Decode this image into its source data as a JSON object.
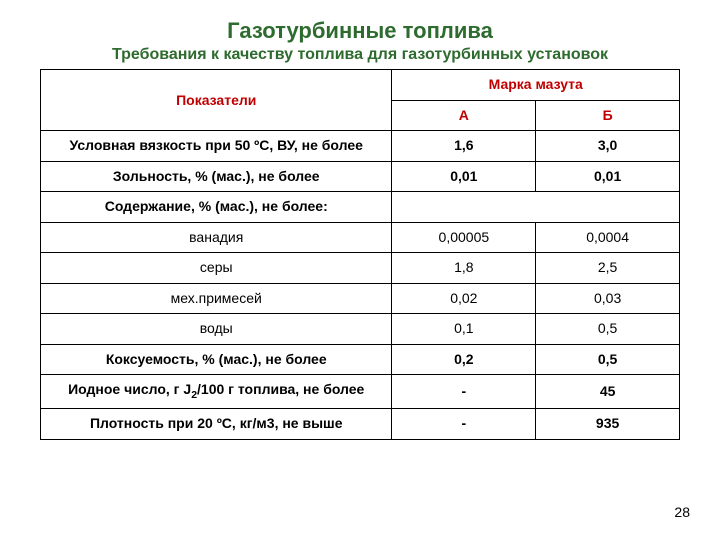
{
  "title": "Газотурбинные топлива",
  "subtitle": "Требования к качеству топлива для газотурбинных установок",
  "page_number": "28",
  "table": {
    "type": "table",
    "background_color": "#ffffff",
    "border_color": "#000000",
    "header_text_color": "#c00000",
    "body_text_color": "#000000",
    "font_size_pt": 11,
    "col_widths_pct": [
      55,
      22.5,
      22.5
    ],
    "header": {
      "row_label": "Показатели",
      "group_label": "Марка мазута",
      "col_a": "А",
      "col_b": "Б"
    },
    "rows": [
      {
        "label": "Условная вязкость при 50 ºС, ВУ, не более",
        "a": "1,6",
        "b": "3,0",
        "bold": true
      },
      {
        "label": "Зольность, % (мас.), не более",
        "a": "0,01",
        "b": "0,01",
        "bold": true
      },
      {
        "label": "Содержание, % (мас.), не более:",
        "a": "",
        "b": "",
        "bold": true,
        "merge_ab": true
      },
      {
        "label": "ванадия",
        "a": "0,00005",
        "b": "0,0004",
        "bold": false
      },
      {
        "label": "серы",
        "a": "1,8",
        "b": "2,5",
        "bold": false
      },
      {
        "label": "мех.примесей",
        "a": "0,02",
        "b": "0,03",
        "bold": false
      },
      {
        "label": "воды",
        "a": "0,1",
        "b": "0,5",
        "bold": false
      },
      {
        "label": "Коксуемость, % (мас.), не более",
        "a": "0,2",
        "b": "0,5",
        "bold": true
      },
      {
        "label_html": "Иодное число, г J<sub>2</sub>/100 г топлива, не более",
        "label": "Иодное число, г J2/100 г топлива, не более",
        "a": "-",
        "b": "45",
        "bold": true
      },
      {
        "label": "Плотность при 20 ºС, кг/м3, не выше",
        "a": "-",
        "b": "935",
        "bold": true
      }
    ]
  }
}
